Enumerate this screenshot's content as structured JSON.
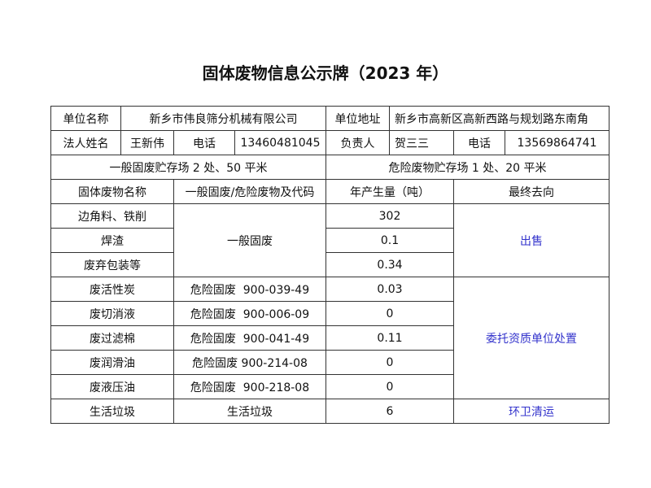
{
  "title": "固体废物信息公示牌（2023 年）",
  "info": {
    "unit_name_label": "单位名称",
    "unit_name": "新乡市伟良筛分机械有限公司",
    "address_label": "单位地址",
    "address": "新乡市高新区高新西路与规划路东南角",
    "legal_label": "法人姓名",
    "legal_name": "王新伟",
    "phone_label": "电话",
    "legal_phone": "13460481045",
    "manager_label": "负责人",
    "manager_name": "贺三三",
    "phone_label2": "电话",
    "manager_phone": "13569864741",
    "general_storage": "一般固废贮存场 2 处、50 平米",
    "hazard_storage": "危险废物贮存场 1 处、20 平米"
  },
  "headers": [
    "固体废物名称",
    "一般固废/危险废物及代码",
    "年产生量（吨）",
    "最终去向"
  ],
  "general": {
    "type": "一般固废",
    "destination": "出售",
    "rows": [
      {
        "name": "边角料、铁削",
        "amount": "302"
      },
      {
        "name": "焊渣",
        "amount": "0.1"
      },
      {
        "name": "废弃包装等",
        "amount": "0.34"
      }
    ]
  },
  "hazard": {
    "destination": "委托资质单位处置",
    "rows": [
      {
        "name": "废活性炭",
        "code": "危险固废  900-039-49",
        "amount": "0.03"
      },
      {
        "name": "废切消液",
        "code": "危险固废  900-006-09",
        "amount": "0"
      },
      {
        "name": "废过滤棉",
        "code": "危险固废  900-041-49",
        "amount": "0.11"
      },
      {
        "name": "废润滑油",
        "code": "危险固废 900-214-08",
        "amount": "0"
      },
      {
        "name": "废液压油",
        "code": "危险固废  900-218-08",
        "amount": "0"
      }
    ]
  },
  "domestic": {
    "name": "生活垃圾",
    "type": "生活垃圾",
    "amount": "6",
    "destination": "环卫清运"
  },
  "colors": {
    "destination_text": "#3333cc",
    "border": "#333333"
  }
}
